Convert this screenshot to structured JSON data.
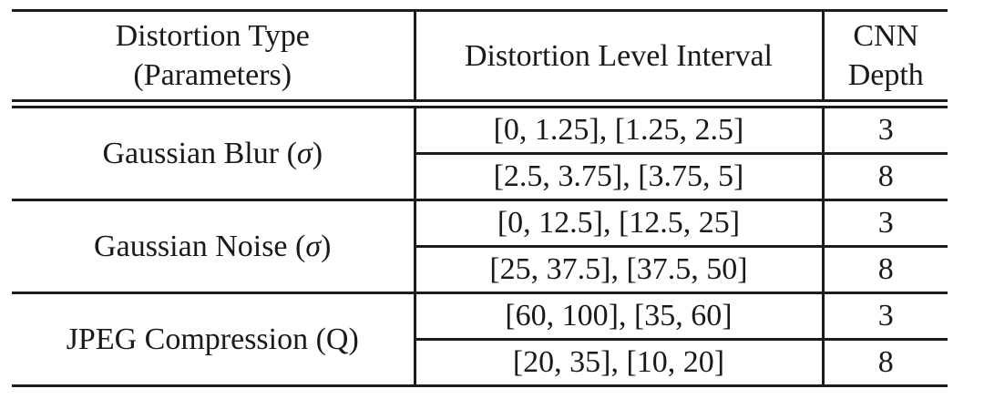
{
  "table": {
    "headers": {
      "distortion_type": {
        "line1": "Distortion Type",
        "line2": "(Parameters)"
      },
      "interval": "Distortion Level Interval",
      "cnn_depth": {
        "line1": "CNN",
        "line2": "Depth"
      }
    },
    "groups": [
      {
        "label_prefix": "Gaussian Blur (",
        "parameter": "σ",
        "label_suffix": ")",
        "rows": [
          {
            "interval": "[0, 1.25], [1.25, 2.5]",
            "depth": "3"
          },
          {
            "interval": "[2.5, 3.75], [3.75, 5]",
            "depth": "8"
          }
        ]
      },
      {
        "label_prefix": "Gaussian Noise (",
        "parameter": "σ",
        "label_suffix": ")",
        "rows": [
          {
            "interval": "[0, 12.5], [12.5, 25]",
            "depth": "3"
          },
          {
            "interval": "[25, 37.5], [37.5, 50]",
            "depth": "8"
          }
        ]
      },
      {
        "label_prefix": "JPEG Compression (",
        "parameter": "Q",
        "label_suffix": ")",
        "rows": [
          {
            "interval": "[60, 100], [35, 60]",
            "depth": "3"
          },
          {
            "interval": "[20, 35], [10, 20]",
            "depth": "8"
          }
        ]
      }
    ],
    "colors": {
      "rule": "#1c1c1c",
      "text": "#1a1a1a",
      "background": "#ffffff"
    }
  }
}
